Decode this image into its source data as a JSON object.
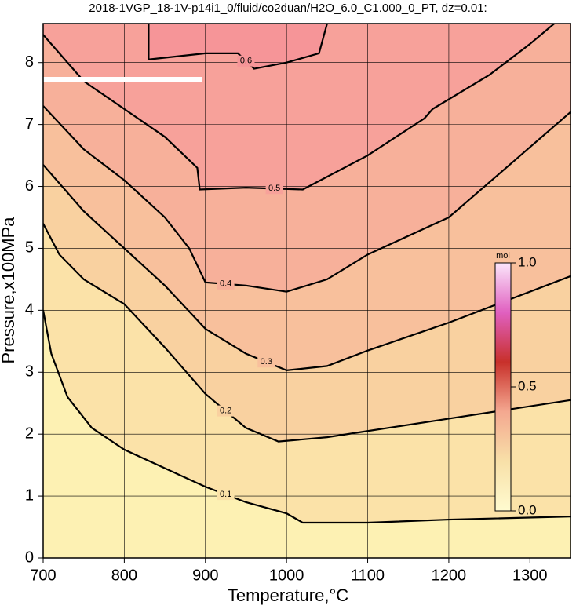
{
  "chart_data": {
    "type": "contour",
    "title": "2018-1VGP_18-1V-p14i1_0/fluid/co2duan/H2O_6.0_C1.000_0_PT, dz=0.01:",
    "x_label": "Temperature,°C",
    "y_label": "Pressure,x100MPa",
    "xlim": [
      700,
      1350
    ],
    "ylim": [
      0,
      8.63
    ],
    "xticks": [
      700,
      800,
      900,
      1000,
      1100,
      1200,
      1300
    ],
    "yticks": [
      0,
      1,
      2,
      3,
      4,
      5,
      6,
      7,
      8
    ],
    "grid": true,
    "base_color": "#fdf1b3",
    "series": [
      {
        "name": "0.1",
        "color": "#fbe2a8",
        "x": [
          700,
          710,
          730,
          760,
          800,
          850,
          900,
          950,
          1000,
          1020,
          1100,
          1200,
          1350
        ],
        "y": [
          4.0,
          3.3,
          2.6,
          2.1,
          1.75,
          1.45,
          1.15,
          0.9,
          0.72,
          0.57,
          0.57,
          0.62,
          0.67
        ]
      },
      {
        "name": "0.2",
        "color": "#f9d1a0",
        "x": [
          700,
          720,
          750,
          800,
          850,
          900,
          950,
          990,
          1050,
          1100,
          1200,
          1350
        ],
        "y": [
          5.4,
          4.9,
          4.5,
          4.1,
          3.4,
          2.65,
          2.1,
          1.88,
          1.95,
          2.05,
          2.25,
          2.55
        ]
      },
      {
        "name": "0.3",
        "color": "#f8c09c",
        "x": [
          700,
          750,
          800,
          850,
          900,
          950,
          1000,
          1050,
          1100,
          1200,
          1350
        ],
        "y": [
          6.35,
          5.6,
          5.0,
          4.4,
          3.7,
          3.3,
          3.03,
          3.1,
          3.35,
          3.8,
          4.55
        ]
      },
      {
        "name": "0.4",
        "color": "#f7b09a",
        "x": [
          700,
          750,
          800,
          850,
          880,
          900,
          950,
          1000,
          1050,
          1100,
          1200,
          1350
        ],
        "y": [
          7.3,
          6.6,
          6.1,
          5.5,
          5.0,
          4.45,
          4.4,
          4.3,
          4.5,
          4.9,
          5.5,
          7.2
        ]
      },
      {
        "name": "0.5",
        "color": "#f7a19a",
        "x": [
          700,
          750,
          800,
          850,
          890,
          893,
          950,
          1020,
          1100,
          1170,
          1180,
          1250,
          1300,
          1330
        ],
        "y": [
          8.45,
          7.7,
          7.25,
          6.8,
          6.3,
          5.95,
          5.98,
          5.95,
          6.5,
          7.1,
          7.25,
          7.8,
          8.3,
          8.63
        ]
      },
      {
        "name": "0.6",
        "color": "#f69598",
        "x": [
          830,
          830,
          900,
          940,
          960,
          1000,
          1040,
          1050
        ],
        "y": [
          8.63,
          8.05,
          8.15,
          8.15,
          7.9,
          8.0,
          8.15,
          8.63
        ]
      }
    ],
    "colorbar": {
      "title": "mol",
      "lim": [
        0,
        1
      ],
      "ticks": [
        {
          "value": 0,
          "label": "0.0"
        },
        {
          "value": 0.5,
          "label": "0.5"
        },
        {
          "value": 1,
          "label": "1.0"
        }
      ],
      "colors": [
        "#fffbd0",
        "#f8e0a8",
        "#f4a890",
        "#c8302a",
        "#e060c0",
        "#fbe6fb"
      ]
    }
  }
}
